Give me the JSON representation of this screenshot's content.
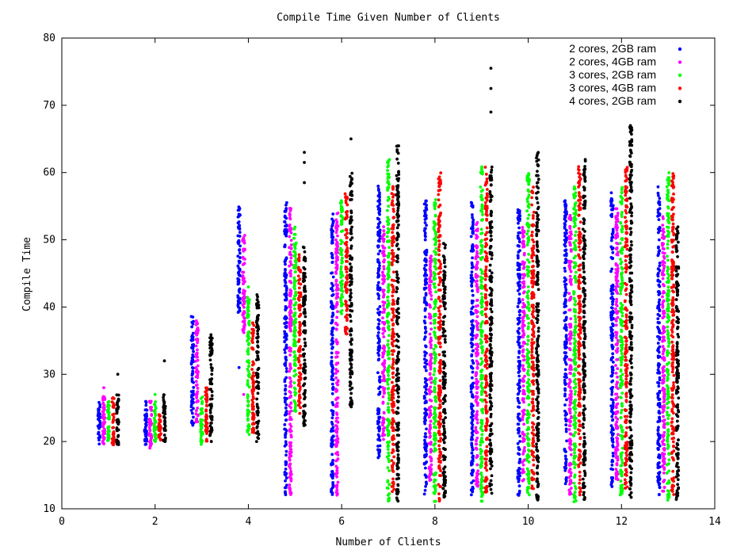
{
  "chart_data": {
    "type": "scatter",
    "title": "Compile Time Given Number of Clients",
    "xlabel": "Number of Clients",
    "ylabel": "Compile Time",
    "xlim": [
      0,
      14
    ],
    "ylim": [
      10,
      80
    ],
    "xticks": [
      0,
      2,
      4,
      6,
      8,
      10,
      12,
      14
    ],
    "yticks": [
      10,
      20,
      30,
      40,
      50,
      60,
      70,
      80
    ],
    "grid": false,
    "legend_position": "top-right",
    "series": [
      {
        "name": "2 cores, 2GB ram",
        "color": "#0000ff",
        "ranges": [
          [
            1,
            19.5,
            26
          ],
          [
            2,
            19.5,
            26
          ],
          [
            3,
            22,
            39
          ],
          [
            4,
            39,
            55
          ],
          [
            5,
            12,
            56
          ],
          [
            6,
            12,
            54
          ],
          [
            7,
            17,
            58
          ],
          [
            8,
            12,
            56
          ],
          [
            9,
            12,
            56
          ],
          [
            10,
            12,
            55
          ],
          [
            11,
            13,
            56
          ],
          [
            12,
            13,
            57
          ],
          [
            13,
            12,
            58
          ]
        ],
        "outliers": [
          [
            4,
            31
          ],
          [
            5,
            15
          ],
          [
            5,
            17
          ],
          [
            6,
            20
          ]
        ]
      },
      {
        "name": "2 cores, 4GB ram",
        "color": "#ff00ff",
        "ranges": [
          [
            1,
            19,
            27
          ],
          [
            2,
            19,
            26
          ],
          [
            3,
            22,
            38
          ],
          [
            4,
            36,
            51
          ],
          [
            5,
            12,
            55
          ],
          [
            6,
            12,
            54
          ],
          [
            7,
            20,
            52
          ],
          [
            8,
            14,
            48
          ],
          [
            9,
            13,
            53
          ],
          [
            10,
            14,
            52
          ],
          [
            11,
            12,
            54
          ],
          [
            12,
            14,
            55
          ],
          [
            13,
            12,
            54
          ]
        ],
        "outliers": [
          [
            1,
            28
          ],
          [
            4,
            27
          ],
          [
            5,
            16
          ]
        ]
      },
      {
        "name": "3 cores, 2GB ram",
        "color": "#00ff00",
        "ranges": [
          [
            1,
            20,
            26
          ],
          [
            2,
            20,
            26
          ],
          [
            3,
            19.5,
            27
          ],
          [
            4,
            21,
            42
          ],
          [
            5,
            24,
            52
          ],
          [
            6,
            39,
            56
          ],
          [
            7,
            11,
            62
          ],
          [
            8,
            11,
            56
          ],
          [
            9,
            11,
            61
          ],
          [
            10,
            12,
            60
          ],
          [
            11,
            11,
            58
          ],
          [
            12,
            12,
            58
          ],
          [
            13,
            11,
            60
          ]
        ],
        "outliers": [
          [
            2,
            27
          ],
          [
            4,
            43
          ],
          [
            6,
            39
          ]
        ]
      },
      {
        "name": "3 cores, 4GB ram",
        "color": "#ff0000",
        "ranges": [
          [
            1,
            19.5,
            27
          ],
          [
            2,
            20,
            24
          ],
          [
            3,
            20,
            28
          ],
          [
            4,
            21,
            38
          ],
          [
            5,
            24,
            48
          ],
          [
            6,
            36,
            57
          ],
          [
            7,
            12,
            58
          ],
          [
            8,
            11,
            60
          ],
          [
            9,
            12,
            61
          ],
          [
            10,
            13,
            58
          ],
          [
            11,
            12,
            61
          ],
          [
            12,
            13,
            61
          ],
          [
            13,
            12,
            60
          ]
        ],
        "outliers": [
          [
            3,
            28
          ],
          [
            6,
            36
          ],
          [
            12,
            34
          ]
        ]
      },
      {
        "name": "4 cores, 2GB ram",
        "color": "#000000",
        "ranges": [
          [
            1,
            19.5,
            27
          ],
          [
            2,
            20,
            27
          ],
          [
            3,
            20,
            36
          ],
          [
            4,
            20,
            42
          ],
          [
            5,
            22,
            49
          ],
          [
            6,
            25,
            60
          ],
          [
            7,
            11,
            64
          ],
          [
            8,
            11,
            50
          ],
          [
            9,
            11,
            61
          ],
          [
            10,
            11,
            63
          ],
          [
            11,
            11,
            62
          ],
          [
            12,
            11,
            67
          ],
          [
            13,
            11,
            52
          ]
        ],
        "outliers": [
          [
            1,
            30
          ],
          [
            2,
            32
          ],
          [
            5,
            63
          ],
          [
            5,
            61.5
          ],
          [
            5,
            58.5
          ],
          [
            6,
            65
          ],
          [
            9,
            75.5
          ],
          [
            9,
            72.5
          ],
          [
            9,
            69
          ],
          [
            10,
            62.8
          ],
          [
            12,
            64.5
          ]
        ]
      }
    ]
  }
}
